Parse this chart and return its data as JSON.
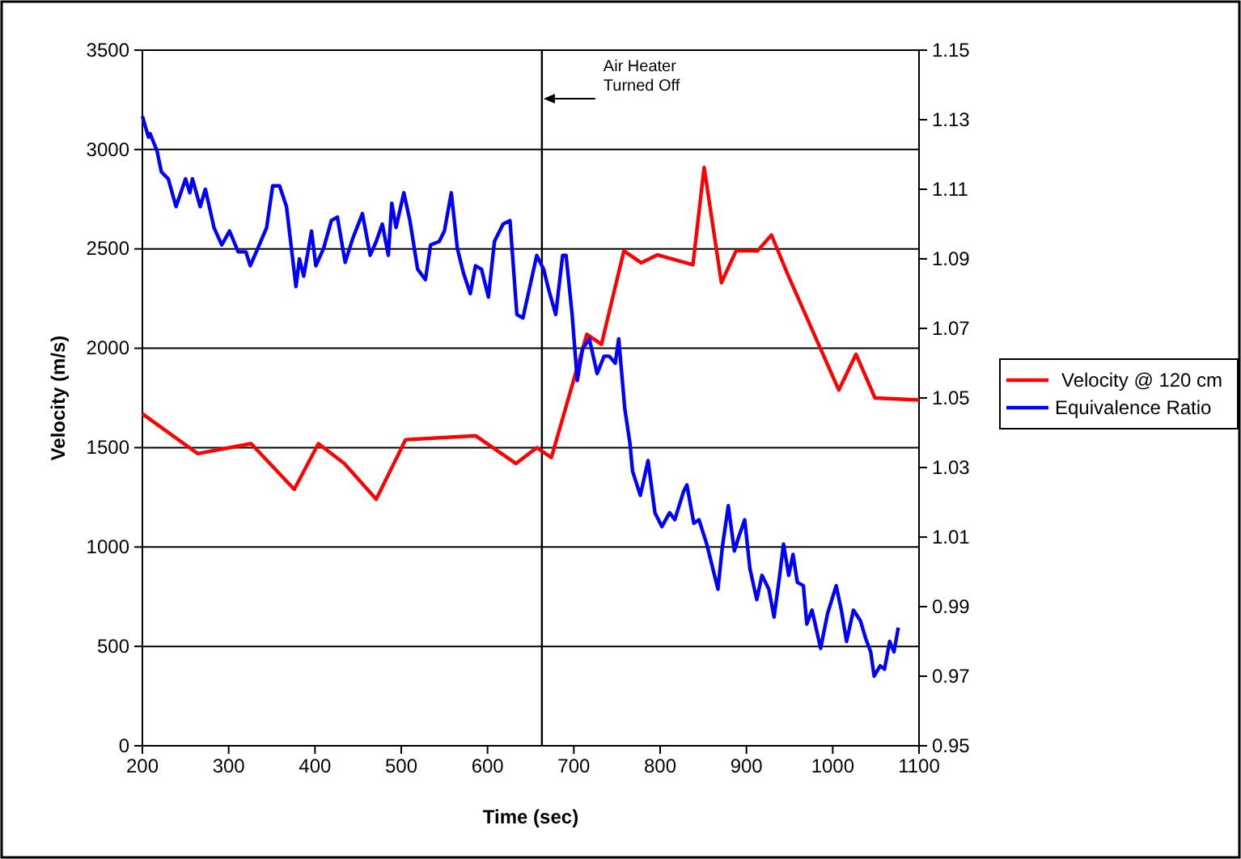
{
  "chart_data": {
    "type": "line",
    "xlabel": "Time (sec)",
    "ylabel": "Velocity (m/s)",
    "xlim": [
      200,
      1100
    ],
    "xticks": [
      200,
      300,
      400,
      500,
      600,
      700,
      800,
      900,
      1000,
      1100
    ],
    "ylim": [
      0,
      3500
    ],
    "yticks": [
      0,
      500,
      1000,
      1500,
      2000,
      2500,
      3000,
      3500
    ],
    "y2lim": [
      0.95,
      1.15
    ],
    "y2ticks": [
      0.95,
      0.97,
      0.99,
      1.01,
      1.03,
      1.05,
      1.07,
      1.09,
      1.11,
      1.13,
      1.15
    ],
    "grid": "y",
    "legend": "right",
    "marker": "none",
    "line_style": "solid",
    "ref_lines": [
      {
        "axis": "x",
        "value": 663,
        "label": "Air Heater Turned Off",
        "color": "#000000"
      }
    ],
    "series": [
      {
        "name": "Velocity @ 120 cm",
        "color": "#ff0000",
        "x": [
          200,
          264,
          326,
          376,
          404,
          434,
          471,
          505,
          586,
          633,
          657,
          674,
          715,
          732,
          758,
          778,
          797,
          838,
          851,
          871,
          888,
          913,
          929,
          948,
          1007,
          1027,
          1049,
          1100
        ],
        "values": [
          1670,
          1470,
          1520,
          1290,
          1520,
          1420,
          1240,
          1540,
          1560,
          1420,
          1500,
          1450,
          2070,
          2020,
          2490,
          2430,
          2470,
          2420,
          2910,
          2330,
          2490,
          2490,
          2570,
          2370,
          1790,
          1970,
          1750,
          1740
        ]
      },
      {
        "name": "Equivalence Ratio",
        "color": "#0000ff",
        "axis": "y2",
        "x": [
          200,
          207,
          209,
          217,
          222,
          230,
          239,
          250,
          255,
          258,
          267,
          273,
          283,
          292,
          301,
          311,
          320,
          325,
          332,
          344,
          351,
          359,
          367,
          378,
          382,
          387,
          396,
          401,
          410,
          419,
          426,
          435,
          444,
          455,
          464,
          471,
          478,
          485,
          489,
          494,
          503,
          510,
          519,
          528,
          534,
          544,
          550,
          558,
          565,
          572,
          580,
          586,
          593,
          601,
          608,
          618,
          626,
          634,
          641,
          649,
          657,
          665,
          671,
          679,
          687,
          691,
          698,
          704,
          710,
          718,
          727,
          735,
          741,
          748,
          752,
          759,
          765,
          768,
          777,
          786,
          794,
          802,
          811,
          817,
          827,
          831,
          839,
          845,
          854,
          867,
          872,
          879,
          886,
          891,
          898,
          904,
          912,
          918,
          926,
          932,
          938,
          943,
          949,
          954,
          959,
          966,
          970,
          976,
          986,
          994,
          1004,
          1010,
          1016,
          1024,
          1032,
          1038,
          1044,
          1048,
          1055,
          1060,
          1066,
          1071,
          1076
        ],
        "values": [
          1.131,
          1.125,
          1.126,
          1.121,
          1.115,
          1.113,
          1.105,
          1.113,
          1.109,
          1.113,
          1.105,
          1.11,
          1.099,
          1.094,
          1.098,
          1.092,
          1.092,
          1.088,
          1.092,
          1.099,
          1.111,
          1.111,
          1.105,
          1.082,
          1.09,
          1.085,
          1.098,
          1.088,
          1.093,
          1.101,
          1.102,
          1.089,
          1.096,
          1.103,
          1.091,
          1.095,
          1.1,
          1.091,
          1.106,
          1.099,
          1.109,
          1.101,
          1.087,
          1.084,
          1.094,
          1.095,
          1.098,
          1.109,
          1.093,
          1.086,
          1.08,
          1.088,
          1.087,
          1.079,
          1.095,
          1.1,
          1.101,
          1.074,
          1.073,
          1.082,
          1.091,
          1.087,
          1.081,
          1.074,
          1.091,
          1.091,
          1.074,
          1.055,
          1.064,
          1.067,
          1.057,
          1.062,
          1.062,
          1.06,
          1.067,
          1.047,
          1.037,
          1.029,
          1.022,
          1.032,
          1.017,
          1.013,
          1.017,
          1.015,
          1.023,
          1.025,
          1.014,
          1.015,
          1.008,
          0.995,
          1.007,
          1.019,
          1.006,
          1.01,
          1.015,
          1.001,
          0.992,
          0.999,
          0.995,
          0.987,
          0.998,
          1.008,
          0.999,
          1.005,
          0.997,
          0.996,
          0.985,
          0.989,
          0.978,
          0.988,
          0.996,
          0.989,
          0.98,
          0.989,
          0.986,
          0.981,
          0.977,
          0.97,
          0.973,
          0.972,
          0.98,
          0.977,
          0.984
        ]
      }
    ]
  }
}
